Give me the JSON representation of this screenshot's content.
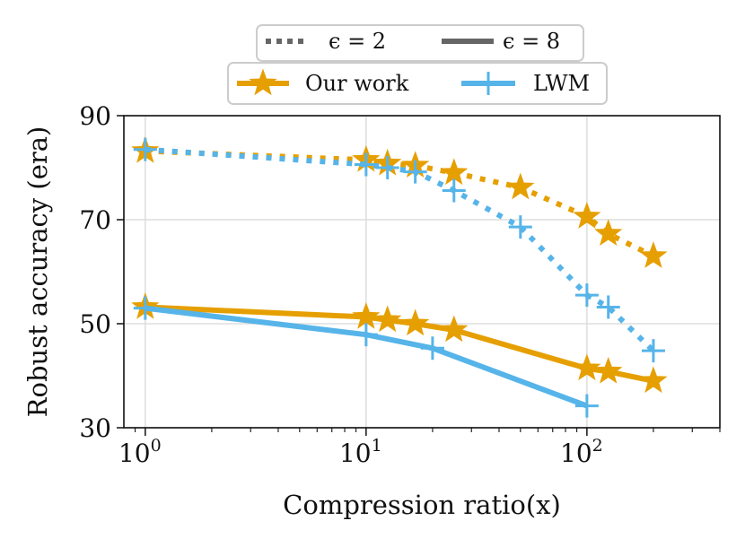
{
  "chart_data": {
    "type": "line",
    "xscale": "log",
    "xlim": [
      0.8,
      400
    ],
    "ylim": [
      30,
      90
    ],
    "yticks": [
      30,
      50,
      70,
      90
    ],
    "xticks": [
      1,
      10,
      100
    ],
    "xtick_labels": [
      {
        "base": "10",
        "exp": "0"
      },
      {
        "base": "10",
        "exp": "1"
      },
      {
        "base": "10",
        "exp": "2"
      }
    ],
    "xlabel": "Compression ratio(x)",
    "ylabel": "Robust accuracy (era)",
    "grid": true,
    "legend_style": [
      {
        "label": "ϵ = 2",
        "linestyle": "dotted"
      },
      {
        "label": "ϵ = 8",
        "linestyle": "solid"
      }
    ],
    "legend_method": [
      {
        "label": "Our work",
        "marker": "star",
        "color": "#E69F00"
      },
      {
        "label": "LWM",
        "marker": "plus",
        "color": "#56B4E9"
      }
    ],
    "series": [
      {
        "name": "Our work, ϵ = 2",
        "method": "Our work",
        "eps": 2,
        "color": "#E69F00",
        "marker": "star",
        "linestyle": "dotted",
        "x": [
          1,
          10,
          12.5,
          16.7,
          25,
          50,
          100,
          125,
          200
        ],
        "y": [
          83.2,
          81.5,
          80.8,
          80.4,
          79.0,
          76.2,
          70.6,
          67.3,
          63.0
        ]
      },
      {
        "name": "LWM, ϵ = 2",
        "method": "LWM",
        "eps": 2,
        "color": "#56B4E9",
        "marker": "plus",
        "linestyle": "dotted",
        "x": [
          1,
          10,
          12.5,
          16.7,
          25,
          50,
          100,
          125,
          200
        ],
        "y": [
          83.5,
          80.6,
          80.0,
          79.2,
          75.6,
          68.6,
          55.5,
          53.2,
          44.8
        ]
      },
      {
        "name": "Our work, ϵ = 8",
        "method": "Our work",
        "eps": 8,
        "color": "#E69F00",
        "marker": "star",
        "linestyle": "solid",
        "x": [
          1,
          10,
          12.5,
          16.7,
          25,
          100,
          125,
          200
        ],
        "y": [
          53.2,
          51.3,
          50.7,
          50.0,
          48.8,
          41.4,
          40.8,
          39.0
        ]
      },
      {
        "name": "LWM, ϵ = 8",
        "method": "LWM",
        "eps": 8,
        "color": "#56B4E9",
        "marker": "plus",
        "linestyle": "solid",
        "x": [
          1,
          10,
          20,
          100
        ],
        "y": [
          53.0,
          47.9,
          45.3,
          34.2
        ]
      }
    ]
  }
}
